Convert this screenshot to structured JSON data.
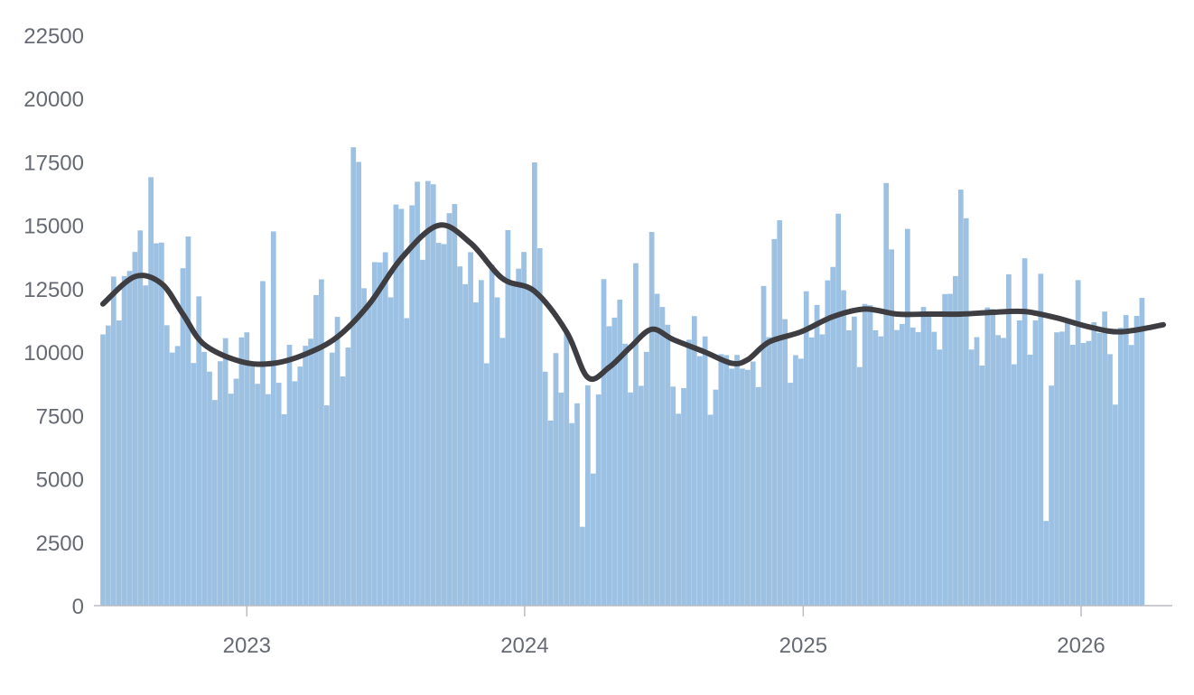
{
  "chart_data": {
    "type": "bar",
    "title": "",
    "xlabel": "",
    "ylabel": "",
    "ylim": [
      0,
      22500
    ],
    "y_ticks": [
      "0",
      "2500",
      "5000",
      "7500",
      "10000",
      "12500",
      "15000",
      "17500",
      "20000",
      "22500"
    ],
    "x_ticks": [
      {
        "label": "2023",
        "date": "2023-01-01"
      },
      {
        "label": "2024",
        "date": "2024-01-01"
      },
      {
        "label": "2025",
        "date": "2025-01-01"
      },
      {
        "label": "2026",
        "date": "2026-01-01"
      }
    ],
    "x_range": [
      "2022-06-26",
      "2026-04-19"
    ],
    "grid": false,
    "legend": "none",
    "series": [
      {
        "kind": "bar",
        "color": "#9dc1e2",
        "start_date": "2022-06-26",
        "interval_days": 7,
        "values": [
          10700,
          11050,
          12980,
          11250,
          13000,
          13200,
          13950,
          14800,
          12630,
          16900,
          14290,
          14320,
          11060,
          9980,
          10240,
          13310,
          14560,
          9570,
          12200,
          10010,
          9230,
          8110,
          9640,
          10550,
          8360,
          8950,
          10580,
          10780,
          9440,
          8750,
          12800,
          8340,
          14760,
          8790,
          7550,
          10290,
          8850,
          9430,
          10250,
          10530,
          12250,
          12870,
          7900,
          9980,
          11390,
          9040,
          10180,
          18080,
          17500,
          12520,
          11950,
          13550,
          13540,
          13940,
          12160,
          15820,
          15650,
          11340,
          15790,
          16720,
          13640,
          16750,
          16620,
          14310,
          14260,
          15480,
          15840,
          13380,
          12680,
          13940,
          11960,
          12840,
          9560,
          13450,
          12160,
          10560,
          14810,
          12620,
          13290,
          13950,
          12500,
          17480,
          14100,
          9230,
          7300,
          9960,
          8400,
          10780,
          7200,
          7980,
          3110,
          8690,
          5210,
          8330,
          12880,
          11020,
          11360,
          12070,
          10330,
          8410,
          13510,
          8670,
          10010,
          14740,
          12300,
          11780,
          11080,
          8640,
          7570,
          8580,
          10490,
          11420,
          9840,
          10620,
          7530,
          8520,
          9920,
          9880,
          9350,
          9890,
          9350,
          9300,
          9630,
          8620,
          12610,
          10590,
          14460,
          15200,
          11300,
          8790,
          9880,
          9740,
          12400,
          10580,
          11860,
          10700,
          12830,
          13360,
          15460,
          12440,
          10860,
          11400,
          9410,
          11900,
          11850,
          10860,
          10620,
          16670,
          14050,
          10870,
          11110,
          14860,
          10970,
          10790,
          11780,
          11470,
          10800,
          10100,
          12290,
          12300,
          13000,
          16410,
          15280,
          10100,
          10590,
          9470,
          11760,
          11700,
          10670,
          10560,
          13070,
          9520,
          11250,
          13700,
          9900,
          11250,
          13090,
          3340,
          8680,
          10780,
          10810,
          11220,
          10290,
          12840,
          10360,
          10440,
          11180,
          10760,
          11600,
          9920,
          7930,
          10960,
          11460,
          10280,
          11430,
          12140
        ]
      },
      {
        "kind": "line",
        "name": "",
        "color": "#3d3d42",
        "points": [
          [
            "2022-06-26",
            11900
          ],
          [
            "2022-08-07",
            12980
          ],
          [
            "2022-09-11",
            12700
          ],
          [
            "2022-10-09",
            11500
          ],
          [
            "2022-11-06",
            10300
          ],
          [
            "2022-12-25",
            9620
          ],
          [
            "2023-02-05",
            9560
          ],
          [
            "2023-03-19",
            9920
          ],
          [
            "2023-04-30",
            10600
          ],
          [
            "2023-06-11",
            11900
          ],
          [
            "2023-07-23",
            13700
          ],
          [
            "2023-09-10",
            15000
          ],
          [
            "2023-10-22",
            14300
          ],
          [
            "2023-12-03",
            12900
          ],
          [
            "2024-01-14",
            12400
          ],
          [
            "2024-02-25",
            10800
          ],
          [
            "2024-03-24",
            9000
          ],
          [
            "2024-04-21",
            9400
          ],
          [
            "2024-05-19",
            10200
          ],
          [
            "2024-06-16",
            10900
          ],
          [
            "2024-07-14",
            10500
          ],
          [
            "2024-08-25",
            10000
          ],
          [
            "2024-09-29",
            9560
          ],
          [
            "2024-10-20",
            9700
          ],
          [
            "2024-11-17",
            10400
          ],
          [
            "2024-12-29",
            10800
          ],
          [
            "2025-02-09",
            11400
          ],
          [
            "2025-03-23",
            11700
          ],
          [
            "2025-05-04",
            11500
          ],
          [
            "2025-06-15",
            11500
          ],
          [
            "2025-07-27",
            11500
          ],
          [
            "2025-09-07",
            11570
          ],
          [
            "2025-10-19",
            11600
          ],
          [
            "2025-11-30",
            11350
          ],
          [
            "2026-01-11",
            11000
          ],
          [
            "2026-02-22",
            10800
          ],
          [
            "2026-04-19",
            11080
          ]
        ]
      }
    ]
  }
}
